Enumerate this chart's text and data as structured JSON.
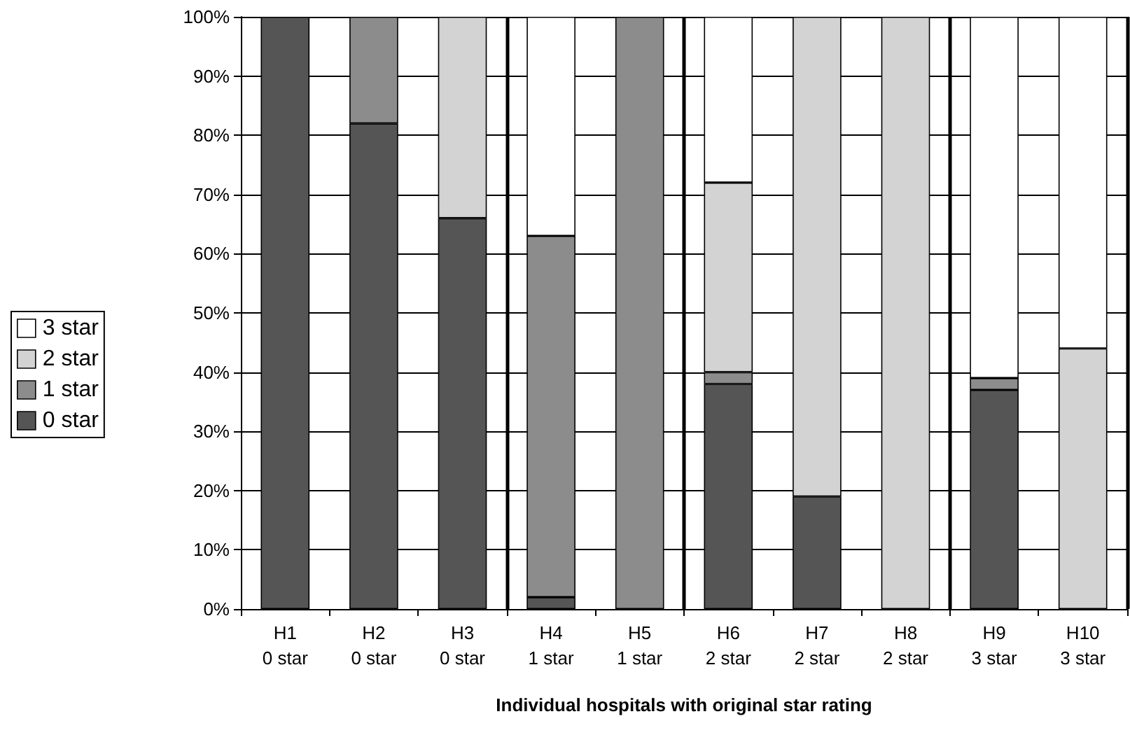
{
  "chart_data": {
    "type": "bar",
    "stacked": true,
    "xlabel": "Individual hospitals with original star rating",
    "categories": [
      "H1\n0 star",
      "H2\n0 star",
      "H3\n0 star",
      "H4\n1 star",
      "H5\n1 star",
      "H6\n2 star",
      "H7\n2 star",
      "H8\n2 star",
      "H9\n3 star",
      "H10\n3 star"
    ],
    "series": [
      {
        "name": "0 star",
        "color": "#555555",
        "values": [
          100,
          82,
          66,
          2,
          null,
          38,
          19,
          null,
          37,
          null
        ]
      },
      {
        "name": "1 star",
        "color": "#8c8c8c",
        "values": [
          null,
          18,
          null,
          61,
          100,
          2,
          null,
          null,
          2,
          null
        ]
      },
      {
        "name": "2 star",
        "color": "#d3d3d3",
        "values": [
          null,
          null,
          34,
          null,
          null,
          32,
          81,
          100,
          null,
          44
        ]
      },
      {
        "name": "3 star",
        "color": "#ffffff",
        "values": [
          null,
          null,
          null,
          37,
          null,
          28,
          null,
          null,
          61,
          56
        ]
      }
    ],
    "ylim": [
      0,
      100
    ],
    "yticks": [
      {
        "value": 0,
        "label": "0%"
      },
      {
        "value": 10,
        "label": "10%"
      },
      {
        "value": 20,
        "label": "20%"
      },
      {
        "value": 30,
        "label": "30%"
      },
      {
        "value": 40,
        "label": "40%"
      },
      {
        "value": 50,
        "label": "50%"
      },
      {
        "value": 60,
        "label": "60%"
      },
      {
        "value": 70,
        "label": "70%"
      },
      {
        "value": 80,
        "label": "80%"
      },
      {
        "value": 90,
        "label": "90%"
      },
      {
        "value": 100,
        "label": "100%"
      }
    ],
    "grid": "y",
    "legend": "left"
  }
}
